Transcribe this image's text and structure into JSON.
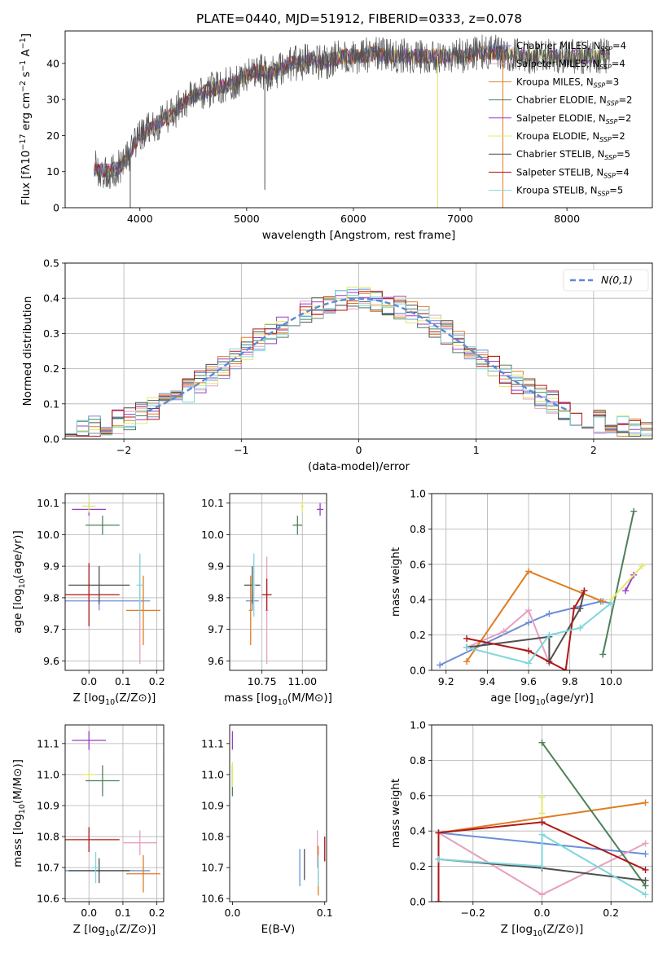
{
  "title": "PLATE=0440, MJD=51912, FIBERID=0333, z=0.078",
  "colors": {
    "chab_miles": "#6a8fd8",
    "salp_miles": "#e7a0c0",
    "krou_miles": "#e07c22",
    "chab_elodie": "#4e8058",
    "salp_elodie": "#9b3cc4",
    "krou_elodie": "#e4e86a",
    "chab_stelib": "#4f4f4f",
    "salp_stelib": "#b01818",
    "krou_stelib": "#7fd6dc"
  },
  "chart_data": [
    {
      "id": "spectrum",
      "type": "line",
      "xlabel": "wavelength [Angstrom, rest frame]",
      "ylabel": "Flux [f$_\\lambda$10$^{-17}$ erg cm$^{-2}$ s$^{-1}$ A$^{-1}$]",
      "xlim": [
        3300,
        8800
      ],
      "ylim": [
        0,
        49
      ],
      "xticks": [
        4000,
        5000,
        6000,
        7000,
        8000
      ],
      "yticks": [
        0,
        10,
        20,
        30,
        40
      ],
      "grid": false,
      "legend": "right",
      "legend_entries": [
        {
          "key": "chab_miles",
          "text": "Chabrier MILES, N",
          "sub": "SSP",
          "tail": "=4"
        },
        {
          "key": "salp_miles",
          "text": "Salpeter MILES, N",
          "sub": "SSP",
          "tail": "=4"
        },
        {
          "key": "krou_miles",
          "text": "Kroupa MILES, N",
          "sub": "SSP",
          "tail": "=3"
        },
        {
          "key": "chab_elodie",
          "text": "Chabrier ELODIE, N",
          "sub": "SSP",
          "tail": "=2"
        },
        {
          "key": "salp_elodie",
          "text": "Salpeter ELODIE, N",
          "sub": "SSP",
          "tail": "=2"
        },
        {
          "key": "krou_elodie",
          "text": "Kroupa ELODIE, N",
          "sub": "SSP",
          "tail": "=2"
        },
        {
          "key": "chab_stelib",
          "text": "Chabrier STELIB, N",
          "sub": "SSP",
          "tail": "=5"
        },
        {
          "key": "salp_stelib",
          "text": "Salpeter STELIB, N",
          "sub": "SSP",
          "tail": "=4"
        },
        {
          "key": "krou_stelib",
          "text": "Kroupa STELIB, N",
          "sub": "SSP",
          "tail": "=5"
        }
      ],
      "continuum": [
        [
          3570,
          11
        ],
        [
          3700,
          10
        ],
        [
          3800,
          11
        ],
        [
          3900,
          14
        ],
        [
          3950,
          18
        ],
        [
          4000,
          20
        ],
        [
          4100,
          22
        ],
        [
          4200,
          24
        ],
        [
          4300,
          26
        ],
        [
          4400,
          29
        ],
        [
          4500,
          31
        ],
        [
          4600,
          32
        ],
        [
          4700,
          33
        ],
        [
          4800,
          34
        ],
        [
          4900,
          35
        ],
        [
          5000,
          37
        ],
        [
          5100,
          38
        ],
        [
          5200,
          37
        ],
        [
          5300,
          38
        ],
        [
          5400,
          40
        ],
        [
          5500,
          40
        ],
        [
          5600,
          41
        ],
        [
          5700,
          40
        ],
        [
          5800,
          41
        ],
        [
          5900,
          42
        ],
        [
          6000,
          42
        ],
        [
          6100,
          42
        ],
        [
          6200,
          43
        ],
        [
          6300,
          42
        ],
        [
          6400,
          42
        ],
        [
          6500,
          42
        ],
        [
          6600,
          42
        ],
        [
          6700,
          42
        ],
        [
          6800,
          42
        ],
        [
          6900,
          42
        ],
        [
          7000,
          42
        ],
        [
          7200,
          43
        ],
        [
          7400,
          43
        ],
        [
          7600,
          42
        ],
        [
          7800,
          42
        ],
        [
          8000,
          42
        ],
        [
          8200,
          42
        ],
        [
          8400,
          42
        ]
      ],
      "drops": [
        {
          "x": 3910,
          "ymin": 0
        },
        {
          "x": 5170,
          "ymin": 5
        },
        {
          "x": 6790,
          "ymin": 0
        },
        {
          "x": 7400,
          "ymin": 0
        }
      ]
    },
    {
      "id": "residuals",
      "type": "step-histogram",
      "xlabel": "(data-model)/error",
      "ylabel": "Normed distribution",
      "xlim": [
        -2.5,
        2.5
      ],
      "ylim": [
        0,
        0.5
      ],
      "xticks": [
        -2,
        -1,
        0,
        1,
        2
      ],
      "yticks": [
        0.0,
        0.1,
        0.2,
        0.3,
        0.4,
        0.5
      ],
      "grid": true,
      "legend": "top-right",
      "legend_label": "N(0,1)",
      "bin_width": 0.1,
      "curve_range": [
        -1.8,
        1.8
      ],
      "curve_color": "#5a8ad8"
    },
    {
      "id": "age_vs_Z",
      "type": "errorbar",
      "xlabel": "Z [log10(Z/Z⊙)]",
      "ylabel": "age [log10(age/yr)]",
      "xlim": [
        -0.07,
        0.22
      ],
      "ylim": [
        9.57,
        10.13
      ],
      "xticks": [
        0.0,
        0.1,
        0.2
      ],
      "yticks": [
        9.6,
        9.7,
        9.8,
        9.9,
        10.0,
        10.1
      ],
      "grid": true,
      "points": [
        {
          "key": "chab_miles",
          "x": 0.03,
          "y": 9.79,
          "xerr": 0.15,
          "yerr": 0.03
        },
        {
          "key": "salp_miles",
          "x": 0.15,
          "y": 9.76,
          "xerr": 0.01,
          "yerr": 0.17
        },
        {
          "key": "krou_miles",
          "x": 0.16,
          "y": 9.76,
          "xerr": 0.05,
          "yerr": 0.11
        },
        {
          "key": "chab_elodie",
          "x": 0.04,
          "y": 10.03,
          "xerr": 0.05,
          "yerr": 0.03
        },
        {
          "key": "salp_elodie",
          "x": 0.0,
          "y": 10.08,
          "xerr": 0.05,
          "yerr": 0.02
        },
        {
          "key": "krou_elodie",
          "x": 0.0,
          "y": 10.09,
          "xerr": 0.02,
          "yerr": 0.02
        },
        {
          "key": "chab_stelib",
          "x": 0.03,
          "y": 9.84,
          "xerr": 0.09,
          "yerr": 0.06
        },
        {
          "key": "salp_stelib",
          "x": 0.0,
          "y": 9.81,
          "xerr": 0.09,
          "yerr": 0.1
        },
        {
          "key": "krou_stelib",
          "x": 0.15,
          "y": 9.84,
          "xerr": 0.01,
          "yerr": 0.1
        }
      ]
    },
    {
      "id": "age_vs_mass",
      "type": "errorbar",
      "xlabel": "mass [log10(M/M⊙)]",
      "ylabel": "",
      "xlim": [
        10.55,
        11.15
      ],
      "ylim": [
        9.57,
        10.13
      ],
      "xticks": [
        10.75,
        11.0
      ],
      "yticks": [
        9.6,
        9.7,
        9.8,
        9.9,
        10.0,
        10.1
      ],
      "grid": true,
      "points": [
        {
          "key": "chab_miles",
          "x": 10.69,
          "y": 9.79,
          "xerr": 0.04,
          "yerr": 0.03
        },
        {
          "key": "salp_miles",
          "x": 10.78,
          "y": 9.76,
          "xerr": 0.01,
          "yerr": 0.17
        },
        {
          "key": "krou_miles",
          "x": 10.68,
          "y": 9.76,
          "xerr": 0.01,
          "yerr": 0.11
        },
        {
          "key": "chab_elodie",
          "x": 10.97,
          "y": 10.03,
          "xerr": 0.03,
          "yerr": 0.03
        },
        {
          "key": "salp_elodie",
          "x": 11.11,
          "y": 10.08,
          "xerr": 0.02,
          "yerr": 0.02
        },
        {
          "key": "krou_elodie",
          "x": 11.0,
          "y": 10.09,
          "xerr": 0.01,
          "yerr": 0.02
        },
        {
          "key": "chab_stelib",
          "x": 10.69,
          "y": 9.84,
          "xerr": 0.05,
          "yerr": 0.06
        },
        {
          "key": "salp_stelib",
          "x": 10.78,
          "y": 9.81,
          "xerr": 0.03,
          "yerr": 0.05
        },
        {
          "key": "krou_stelib",
          "x": 10.7,
          "y": 9.84,
          "xerr": 0.01,
          "yerr": 0.1
        }
      ]
    },
    {
      "id": "weight_vs_age",
      "type": "line",
      "xlabel": "age [log10(age/yr)]",
      "ylabel": "mass weight",
      "xlim": [
        9.13,
        10.2
      ],
      "ylim": [
        0,
        1.0
      ],
      "xticks": [
        9.2,
        9.4,
        9.6,
        9.8,
        10.0
      ],
      "yticks": [
        0.0,
        0.2,
        0.4,
        0.6,
        0.8,
        1.0
      ],
      "grid": true,
      "series": [
        {
          "key": "chab_miles",
          "x": [
            9.17,
            9.6,
            9.7,
            9.95,
            10.0
          ],
          "y": [
            0.03,
            0.27,
            0.32,
            0.39,
            0.38
          ]
        },
        {
          "key": "salp_miles",
          "x": [
            9.3,
            9.48,
            9.6,
            9.7
          ],
          "y": [
            0.13,
            0.22,
            0.34,
            0.04
          ]
        },
        {
          "key": "krou_miles",
          "x": [
            9.3,
            9.6,
            9.96
          ],
          "y": [
            0.05,
            0.56,
            0.39
          ]
        },
        {
          "key": "chab_elodie",
          "x": [
            9.96,
            10.11
          ],
          "y": [
            0.09,
            0.9
          ]
        },
        {
          "key": "salp_elodie",
          "x": [
            10.07,
            10.11
          ],
          "y": [
            0.45,
            0.54
          ]
        },
        {
          "key": "krou_elodie",
          "x": [
            10.0,
            10.15
          ],
          "y": [
            0.4,
            0.59
          ]
        },
        {
          "key": "chab_stelib",
          "x": [
            9.3,
            9.7,
            9.7,
            9.85,
            9.87
          ],
          "y": [
            0.13,
            0.19,
            0.05,
            0.35,
            0.45
          ]
        },
        {
          "key": "salp_stelib",
          "x": [
            9.3,
            9.6,
            9.78,
            9.82,
            9.87
          ],
          "y": [
            0.18,
            0.11,
            0.0,
            0.35,
            0.45
          ]
        },
        {
          "key": "krou_stelib",
          "x": [
            9.3,
            9.6,
            9.7,
            9.85,
            10.0
          ],
          "y": [
            0.13,
            0.04,
            0.2,
            0.24,
            0.38
          ]
        }
      ]
    },
    {
      "id": "mass_vs_Z",
      "type": "errorbar",
      "xlabel": "Z [log10(Z/Z⊙)]",
      "ylabel": "mass [log10(M/M⊙)]",
      "xlim": [
        -0.07,
        0.22
      ],
      "ylim": [
        10.59,
        11.16
      ],
      "xticks": [
        0.0,
        0.1,
        0.2
      ],
      "yticks": [
        10.6,
        10.7,
        10.8,
        10.9,
        11.0,
        11.1
      ],
      "grid": true,
      "points": [
        {
          "key": "chab_miles",
          "x": 0.03,
          "y": 10.69,
          "xerr": 0.15,
          "yerr": 0.01
        },
        {
          "key": "salp_miles",
          "x": 0.15,
          "y": 10.78,
          "xerr": 0.05,
          "yerr": 0.04
        },
        {
          "key": "krou_miles",
          "x": 0.16,
          "y": 10.68,
          "xerr": 0.05,
          "yerr": 0.06
        },
        {
          "key": "chab_elodie",
          "x": 0.04,
          "y": 10.98,
          "xerr": 0.05,
          "yerr": 0.05
        },
        {
          "key": "salp_elodie",
          "x": 0.0,
          "y": 11.11,
          "xerr": 0.05,
          "yerr": 0.03
        },
        {
          "key": "krou_elodie",
          "x": 0.0,
          "y": 11.0,
          "xerr": 0.02,
          "yerr": 0.01
        },
        {
          "key": "chab_stelib",
          "x": 0.03,
          "y": 10.69,
          "xerr": 0.09,
          "yerr": 0.04
        },
        {
          "key": "salp_stelib",
          "x": 0.0,
          "y": 10.79,
          "xerr": 0.09,
          "yerr": 0.04
        },
        {
          "key": "krou_stelib",
          "x": 0.02,
          "y": 10.7,
          "xerr": 0.01,
          "yerr": 0.05
        }
      ]
    },
    {
      "id": "mass_vs_ebv",
      "type": "errorbar",
      "xlabel": "E(B-V)",
      "ylabel": "",
      "xlim": [
        -0.003,
        0.102
      ],
      "ylim": [
        10.59,
        11.16
      ],
      "xticks": [
        0.0,
        0.1
      ],
      "yticks": [
        10.6,
        10.7,
        10.8,
        10.9,
        11.0,
        11.1
      ],
      "grid": false,
      "points": [
        {
          "key": "chab_miles",
          "x": 0.073,
          "y": 10.7,
          "xerr": 0,
          "yerr": 0.06
        },
        {
          "key": "salp_miles",
          "x": 0.092,
          "y": 10.76,
          "xerr": 0,
          "yerr": 0.06
        },
        {
          "key": "krou_miles",
          "x": 0.093,
          "y": 10.69,
          "xerr": 0,
          "yerr": 0.08
        },
        {
          "key": "chab_elodie",
          "x": 0.0,
          "y": 10.98,
          "xerr": 0,
          "yerr": 0.05
        },
        {
          "key": "salp_elodie",
          "x": 0.0,
          "y": 11.11,
          "xerr": 0,
          "yerr": 0.03
        },
        {
          "key": "krou_elodie",
          "x": 0.0,
          "y": 11.0,
          "xerr": 0,
          "yerr": 0.04
        },
        {
          "key": "chab_stelib",
          "x": 0.078,
          "y": 10.71,
          "xerr": 0,
          "yerr": 0.05
        },
        {
          "key": "salp_stelib",
          "x": 0.1,
          "y": 10.76,
          "xerr": 0,
          "yerr": 0.04
        },
        {
          "key": "krou_stelib",
          "x": 0.093,
          "y": 10.69,
          "xerr": 0,
          "yerr": 0.05
        }
      ]
    },
    {
      "id": "weight_vs_Z",
      "type": "line",
      "xlabel": "Z [log10(Z/Z⊙)]",
      "ylabel": "mass weight",
      "xlim": [
        -0.32,
        0.32
      ],
      "ylim": [
        0,
        1.0
      ],
      "xticks": [
        -0.2,
        0.0,
        0.2
      ],
      "yticks": [
        0.0,
        0.2,
        0.4,
        0.6,
        0.8,
        1.0
      ],
      "grid": true,
      "series": [
        {
          "key": "chab_miles",
          "x": [
            -0.3,
            0.0,
            0.3
          ],
          "y": [
            0.39,
            0.33,
            0.27
          ]
        },
        {
          "key": "salp_miles",
          "x": [
            -0.3,
            0.0,
            0.3
          ],
          "y": [
            0.39,
            0.04,
            0.33
          ]
        },
        {
          "key": "krou_miles",
          "x": [
            -0.3,
            0.3
          ],
          "y": [
            0.39,
            0.56
          ]
        },
        {
          "key": "chab_elodie",
          "x": [
            0.0,
            0.3
          ],
          "y": [
            0.9,
            0.09
          ]
        },
        {
          "key": "salp_elodie",
          "x": [
            0.0,
            0.0
          ],
          "y": [
            0.45,
            0.45
          ]
        },
        {
          "key": "krou_elodie",
          "x": [
            0.0,
            0.0
          ],
          "y": [
            0.59,
            0.5
          ]
        },
        {
          "key": "chab_stelib",
          "x": [
            -0.3,
            0.0,
            0.3
          ],
          "y": [
            0.24,
            0.19,
            0.12
          ]
        },
        {
          "key": "salp_stelib",
          "x": [
            -0.3,
            -0.3,
            0.0,
            0.3
          ],
          "y": [
            0.0,
            0.39,
            0.45,
            0.18
          ]
        },
        {
          "key": "krou_stelib",
          "x": [
            -0.3,
            0.0,
            0.0,
            0.3
          ],
          "y": [
            0.24,
            0.2,
            0.38,
            0.04
          ]
        }
      ]
    }
  ]
}
